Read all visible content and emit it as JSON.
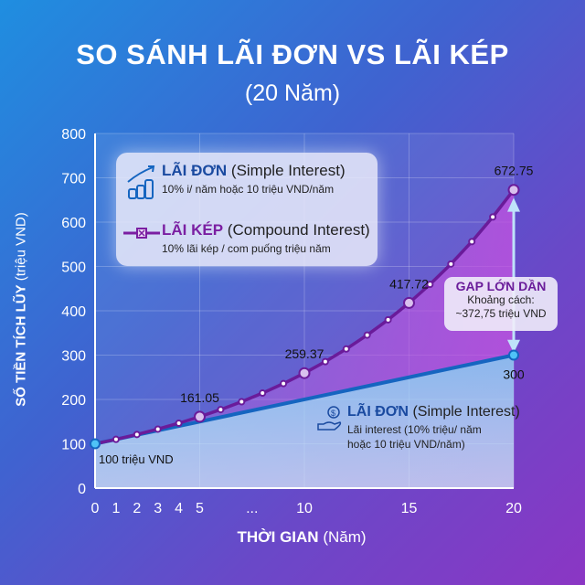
{
  "title": "SO SÁNH LÃI ĐƠN VS LÃI KÉP",
  "subtitle": "(20 Năm)",
  "legend": {
    "simple": {
      "name": "LÃI ĐƠN",
      "en": "(Simple Interest)",
      "desc": "10% i/ năm hoặc 10 triệu VND/năm",
      "icon": "coins-growth-icon"
    },
    "compound": {
      "name": "LÃI KÉP",
      "en": "(Compound Interest)",
      "desc": "10% lãi kép / com puống triệu năm",
      "icon": "line-marker-icon"
    }
  },
  "annotations": {
    "start": "100 triệu VND",
    "gap_title": "GAP LỚN DẦN",
    "gap_line1": "Khoảng cách:",
    "gap_line2": "~372,75 triệu VND",
    "simple_name": "LÃI ĐƠN",
    "simple_en": "(Simple Interest)",
    "simple_desc1": "Lãi interest (10% triệu/ năm",
    "simple_desc2": "hoặc 10 triệu VND/năm)"
  },
  "colors": {
    "compound": "#6a1b9a",
    "simple": "#1565c0"
  },
  "chart_data": {
    "type": "line",
    "title": "SO SÁNH LÃI ĐƠN VS LÃI KÉP",
    "xlabel_bold": "THỜI GIAN",
    "xlabel_unit": "(Năm)",
    "ylabel_bold": "SỐ TIỀN TÍCH LŨY",
    "ylabel_unit": "(triệu VND)",
    "xlim": [
      0,
      20
    ],
    "ylim": [
      0,
      800
    ],
    "xticks": [
      "0",
      "1",
      "2",
      "3",
      "4",
      "5",
      "...",
      "10",
      "15",
      "20"
    ],
    "yticks": [
      0,
      100,
      200,
      300,
      400,
      500,
      600,
      700,
      800
    ],
    "grid": true,
    "legend_position": "top-left",
    "series": [
      {
        "name": "LÃI KÉP",
        "x": [
          0,
          1,
          2,
          3,
          4,
          5,
          6,
          7,
          8,
          9,
          10,
          11,
          12,
          13,
          14,
          15,
          16,
          17,
          18,
          19,
          20
        ],
        "values": [
          100,
          110,
          121,
          133.1,
          146.41,
          161.05,
          177.16,
          194.87,
          214.36,
          235.79,
          259.37,
          285.31,
          313.84,
          345.23,
          379.75,
          417.72,
          459.5,
          505.45,
          555.99,
          611.59,
          672.75
        ],
        "labels": {
          "5": "161.05",
          "10": "259.37",
          "15": "417.72",
          "20": "672.75"
        }
      },
      {
        "name": "LÃI ĐƠN",
        "x": [
          0,
          20
        ],
        "values": [
          100,
          300
        ],
        "labels": {
          "20": "300"
        }
      }
    ]
  }
}
